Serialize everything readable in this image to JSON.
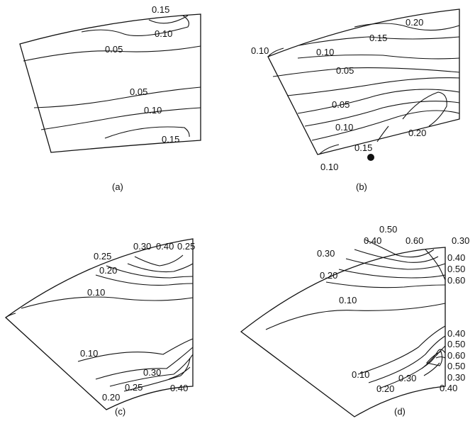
{
  "panels": [
    {
      "caption": "(a)",
      "labels": [
        "0.15",
        "0.10",
        "0.05",
        "0.05",
        "0.10",
        "0.15"
      ]
    },
    {
      "caption": "(b)",
      "labels": [
        "0.20",
        "0.15",
        "0.10",
        "0.10",
        "0.05",
        "0.05",
        "0.10",
        "0.20",
        "0.15",
        "0.10"
      ]
    },
    {
      "caption": "(c)",
      "labels": [
        "0.30",
        "0.40",
        "0.25",
        "0.25",
        "0.20",
        "0.10",
        "0.10",
        "0.30",
        "0.20",
        "0.25",
        "0.40"
      ]
    },
    {
      "caption": "(d)",
      "labels": [
        "0.50",
        "0.40",
        "0.60",
        "0.30",
        "0.30",
        "0.40",
        "0.50",
        "0.60",
        "0.20",
        "0.10",
        "0.40",
        "0.50",
        "0.60",
        "0.50",
        "0.30",
        "0.40",
        "0.10",
        "0.30",
        "0.20"
      ]
    }
  ]
}
